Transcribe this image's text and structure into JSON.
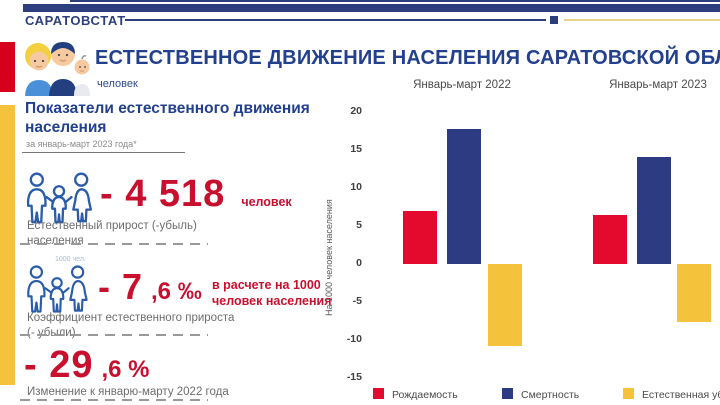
{
  "header": {
    "brand": "САРАТОВСТАТ",
    "title": "ЕСТЕСТВЕННОЕ ДВИЖЕНИЕ НАСЕЛЕНИЯ САРАТОВСКОЙ ОБЛАСТИ",
    "subtitle": "человек"
  },
  "panel": {
    "heading": "Показатели естественного движения населения",
    "period_note": "за январь-март 2023 года*",
    "indicators": [
      {
        "value": "- 4 518",
        "suffix": "",
        "unit": "человек",
        "label": "Естественный прирост (-убыль) населения"
      },
      {
        "icon_note": "1000 чел.",
        "value": "- 7",
        "suffix": ",6 ‰",
        "side_text": "в расчете на 1000 человек населения",
        "label": "Коэффициент естественного прироста (- убыли)"
      },
      {
        "value": "- 29",
        "suffix": ",6 %",
        "label": "Изменение к январю-марту 2022 года"
      }
    ]
  },
  "chart_data": {
    "type": "bar",
    "groups": [
      "Январь-март 2022",
      "Январь-март 2023"
    ],
    "series": [
      {
        "name": "Рождаемость",
        "color": "#e30a2d",
        "values": [
          7.0,
          6.5
        ]
      },
      {
        "name": "Смертность",
        "color": "#2d3c82",
        "values": [
          17.8,
          14.1
        ]
      },
      {
        "name": "Естественная убыль",
        "color": "#f5c33b",
        "values": [
          -10.8,
          -7.6
        ]
      }
    ],
    "ylabel": "На 1000 человек населения",
    "yticks": [
      20,
      15,
      10,
      5,
      0,
      -5,
      -10,
      -15
    ],
    "ylim": [
      -17,
      21
    ],
    "grid": false,
    "legend_position": "bottom"
  },
  "colors": {
    "navy": "#2c3e7e",
    "red_text": "#c8102e",
    "yellow": "#f5c33b"
  }
}
